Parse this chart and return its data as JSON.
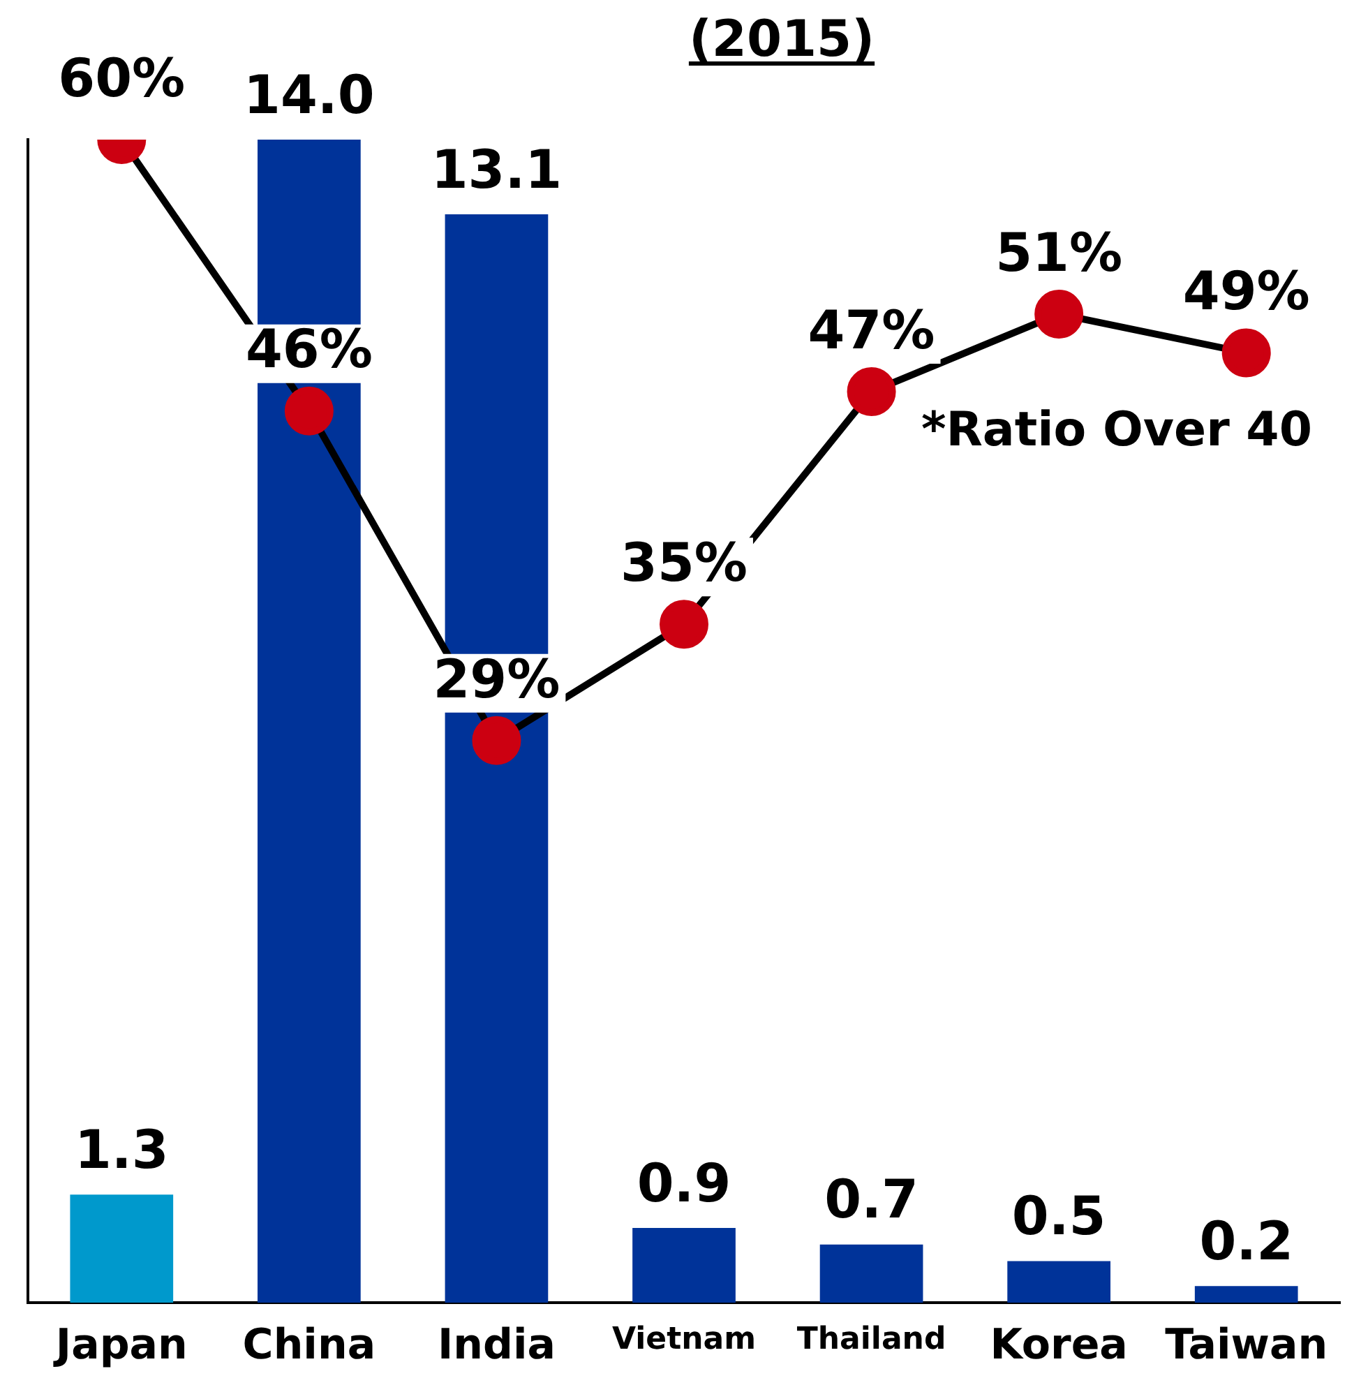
{
  "chart_data": {
    "type": "bar",
    "title": "(2015)",
    "categories": [
      "Japan",
      "China",
      "India",
      "Vietnam",
      "Thailand",
      "Korea",
      "Taiwan"
    ],
    "series": [
      {
        "colors": [
          "#0099cc",
          "#003399",
          "#003399",
          "#003399",
          "#003399",
          "#003399",
          "#003399"
        ],
        "values": [
          1.3,
          14.0,
          13.1,
          0.9,
          0.7,
          0.5,
          0.2
        ],
        "value_labels": [
          "1.3",
          "14.0",
          "13.1",
          "0.9",
          "0.7",
          "0.5",
          "0.2"
        ]
      },
      {
        "type": "line",
        "axis": "y2",
        "color": "#cc0011",
        "values": [
          60,
          46,
          29,
          35,
          47,
          51,
          49
        ],
        "value_labels": [
          "60%",
          "46%",
          "29%",
          "35%",
          "47%",
          "51%",
          "49%"
        ]
      }
    ],
    "ylim": [
      0,
      14
    ],
    "y2lim": [
      0,
      60
    ],
    "tick_labels": "x",
    "grid": false,
    "legend": false,
    "marker": "circle",
    "line_style": "solid",
    "annotations": [
      "*Ratio Over 40"
    ]
  }
}
